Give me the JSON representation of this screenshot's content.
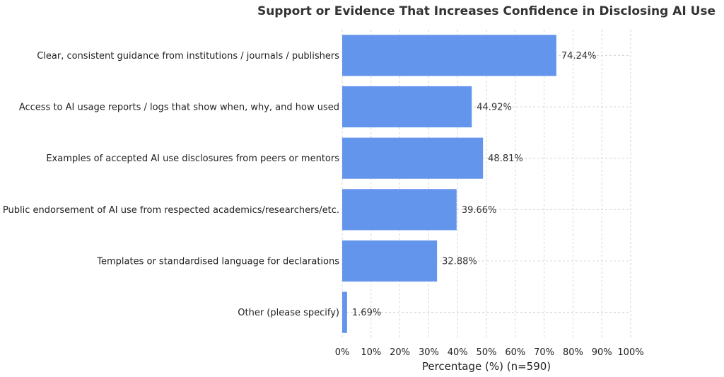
{
  "chart_data": {
    "type": "bar",
    "orientation": "horizontal",
    "title": "Support or Evidence That Increases Confidence in Disclosing AI Use",
    "xlabel": "Percentage (%) (n=590)",
    "ylabel": "",
    "xlim": [
      0,
      100
    ],
    "xticks": [
      "0%",
      "10%",
      "20%",
      "30%",
      "40%",
      "50%",
      "60%",
      "70%",
      "80%",
      "90%",
      "100%"
    ],
    "grid": true,
    "bar_color": "#6495ED",
    "categories": [
      "Clear, consistent guidance from institutions / journals / publishers",
      "Access to AI usage reports / logs that show when, why, and how used",
      "Examples of accepted AI use disclosures from peers or mentors",
      "Public endorsement of AI use from respected academics/researchers/etc.",
      "Templates or standardised language for declarations",
      "Other (please specify)"
    ],
    "values": [
      74.24,
      44.92,
      48.81,
      39.66,
      32.88,
      1.69
    ],
    "value_labels": [
      "74.24%",
      "44.92%",
      "48.81%",
      "39.66%",
      "32.88%",
      "1.69%"
    ]
  }
}
